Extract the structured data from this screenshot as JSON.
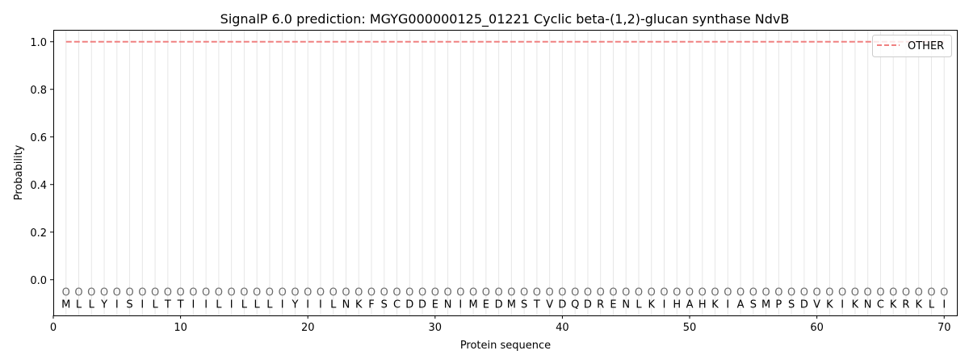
{
  "chart_data": {
    "type": "line",
    "title": "SignalP 6.0 prediction: MGYG000000125_01221 Cyclic beta-(1,2)-glucan synthase NdvB",
    "xlabel": "Protein sequence",
    "ylabel": "Probability",
    "xlim": [
      0,
      71
    ],
    "ylim": [
      -0.15,
      1.05
    ],
    "xticks": [
      0,
      10,
      20,
      30,
      40,
      50,
      60,
      70
    ],
    "yticks": [
      0.0,
      0.2,
      0.4,
      0.6,
      0.8,
      1.0
    ],
    "xtick_labels": [
      "0",
      "10",
      "20",
      "30",
      "40",
      "50",
      "60",
      "70"
    ],
    "ytick_labels": [
      "0.0",
      "0.2",
      "0.4",
      "0.6",
      "0.8",
      "1.0"
    ],
    "sequence": [
      "M",
      "L",
      "L",
      "Y",
      "I",
      "S",
      "I",
      "L",
      "T",
      "T",
      "I",
      "I",
      "L",
      "I",
      "L",
      "L",
      "L",
      "I",
      "Y",
      "I",
      "I",
      "L",
      "N",
      "K",
      "F",
      "S",
      "C",
      "D",
      "D",
      "E",
      "N",
      "I",
      "M",
      "E",
      "D",
      "M",
      "S",
      "T",
      "V",
      "D",
      "Q",
      "D",
      "R",
      "E",
      "N",
      "L",
      "K",
      "I",
      "H",
      "A",
      "H",
      "K",
      "I",
      "A",
      "S",
      "M",
      "P",
      "S",
      "D",
      "V",
      "K",
      "I",
      "K",
      "N",
      "C",
      "K",
      "R",
      "K",
      "L",
      "I"
    ],
    "region_labels": [
      "O",
      "O",
      "O",
      "O",
      "O",
      "O",
      "O",
      "O",
      "O",
      "O",
      "O",
      "O",
      "O",
      "O",
      "O",
      "O",
      "O",
      "O",
      "O",
      "O",
      "O",
      "O",
      "O",
      "O",
      "O",
      "O",
      "O",
      "O",
      "O",
      "O",
      "O",
      "O",
      "O",
      "O",
      "O",
      "O",
      "O",
      "O",
      "O",
      "O",
      "O",
      "O",
      "O",
      "O",
      "O",
      "O",
      "O",
      "O",
      "O",
      "O",
      "O",
      "O",
      "O",
      "O",
      "O",
      "O",
      "O",
      "O",
      "O",
      "O",
      "O",
      "O",
      "O",
      "O",
      "O",
      "O",
      "O",
      "O",
      "O",
      "O"
    ],
    "series": [
      {
        "name": "OTHER",
        "color": "#f08080",
        "style": "dashed",
        "x_start": 1,
        "x_end": 70,
        "value": 1.0
      }
    ],
    "legend_position": "top-right",
    "vertical_gridlines": true
  }
}
